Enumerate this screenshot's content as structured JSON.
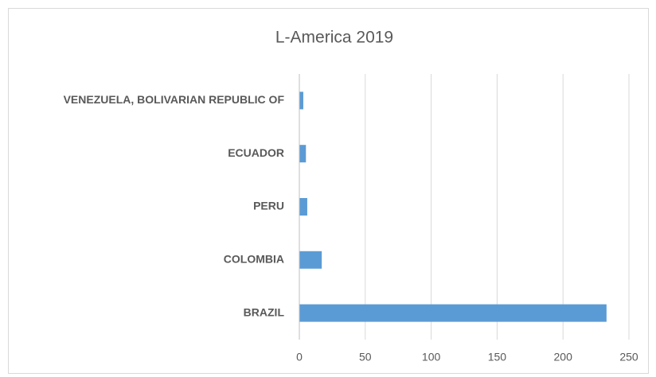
{
  "chart_data": {
    "type": "bar",
    "orientation": "horizontal",
    "title": "L-America 2019",
    "categories": [
      "BRAZIL",
      "COLOMBIA",
      "PERU",
      "ECUADOR",
      "VENEZUELA, BOLIVARIAN REPUBLIC OF"
    ],
    "values": [
      233,
      17,
      6,
      5,
      3
    ],
    "color": "#5b9bd5",
    "xlim": [
      0,
      250
    ],
    "xticks": [
      0,
      50,
      100,
      150,
      200,
      250
    ],
    "grid": true
  }
}
